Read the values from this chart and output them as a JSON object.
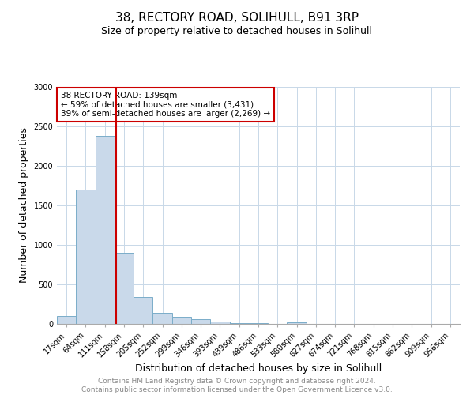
{
  "title": "38, RECTORY ROAD, SOLIHULL, B91 3RP",
  "subtitle": "Size of property relative to detached houses in Solihull",
  "xlabel": "Distribution of detached houses by size in Solihull",
  "ylabel": "Number of detached properties",
  "footnote": "Contains HM Land Registry data © Crown copyright and database right 2024.\nContains public sector information licensed under the Open Government Licence v3.0.",
  "bar_labels": [
    "17sqm",
    "64sqm",
    "111sqm",
    "158sqm",
    "205sqm",
    "252sqm",
    "299sqm",
    "346sqm",
    "393sqm",
    "439sqm",
    "486sqm",
    "533sqm",
    "580sqm",
    "627sqm",
    "674sqm",
    "721sqm",
    "768sqm",
    "815sqm",
    "862sqm",
    "909sqm",
    "956sqm"
  ],
  "bar_values": [
    100,
    1700,
    2380,
    900,
    340,
    145,
    90,
    60,
    35,
    15,
    10,
    5,
    20,
    0,
    0,
    0,
    0,
    0,
    0,
    0,
    0
  ],
  "bar_color": "#c9d9ea",
  "bar_edge_color": "#7aadc9",
  "vline_color": "#cc0000",
  "annotation_text": "38 RECTORY ROAD: 139sqm\n← 59% of detached houses are smaller (3,431)\n39% of semi-detached houses are larger (2,269) →",
  "annotation_box_color": "#ffffff",
  "annotation_box_edge": "#cc0000",
  "ylim": [
    0,
    3000
  ],
  "yticks": [
    0,
    500,
    1000,
    1500,
    2000,
    2500,
    3000
  ],
  "title_fontsize": 11,
  "subtitle_fontsize": 9,
  "xlabel_fontsize": 9,
  "ylabel_fontsize": 9,
  "tick_fontsize": 7,
  "annotation_fontsize": 7.5,
  "footnote_fontsize": 6.5,
  "background_color": "#ffffff",
  "grid_color": "#c8d8e8"
}
